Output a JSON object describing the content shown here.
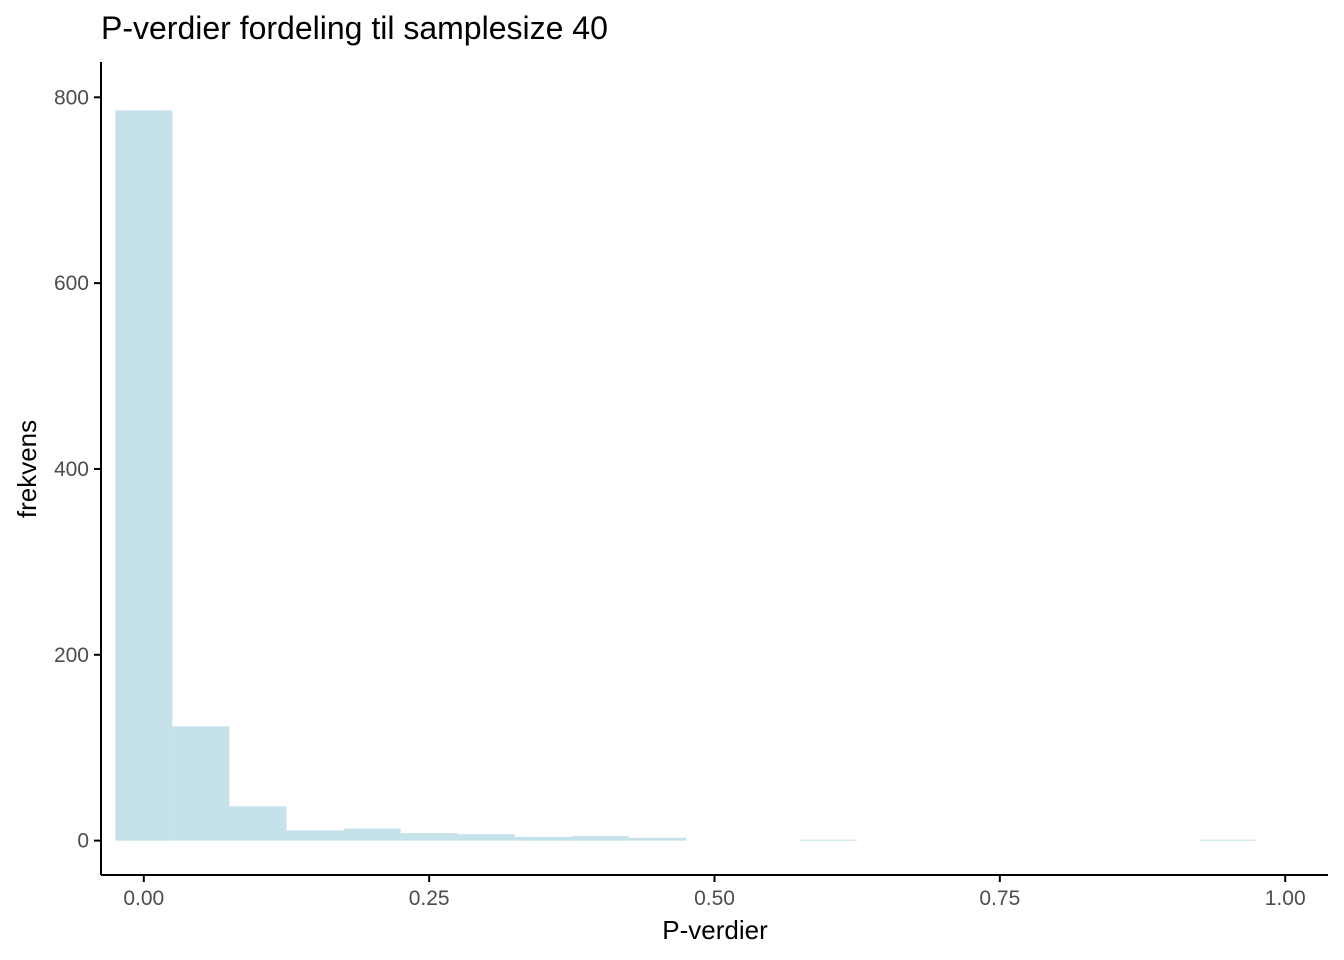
{
  "chart_data": {
    "type": "bar",
    "title": "P-verdier fordeling til samplesize 40",
    "xlabel": "P-verdier",
    "ylabel": "frekvens",
    "xlim": [
      -0.0375,
      1.0375
    ],
    "ylim": [
      -37,
      838
    ],
    "bin_width": 0.05,
    "x": [
      0.0,
      0.05,
      0.1,
      0.15,
      0.2,
      0.25,
      0.3,
      0.35,
      0.4,
      0.45,
      0.5,
      0.55,
      0.6,
      0.65,
      0.7,
      0.75,
      0.8,
      0.85,
      0.9,
      0.95
    ],
    "values": [
      786,
      123,
      37,
      11,
      13,
      8,
      7,
      4,
      5,
      3,
      0,
      0,
      1,
      0,
      0,
      0,
      0,
      0,
      0,
      1
    ],
    "x_ticks": [
      0.0,
      0.25,
      0.5,
      0.75,
      1.0
    ],
    "x_tick_labels": [
      "0.00",
      "0.25",
      "0.50",
      "0.75",
      "1.00"
    ],
    "y_ticks": [
      0,
      200,
      400,
      600,
      800
    ],
    "y_tick_labels": [
      "0",
      "200",
      "400",
      "600",
      "800"
    ],
    "grid": false,
    "legend": "none",
    "colors": {
      "bar_fill": "#c5e1ea",
      "axis_line": "#000000",
      "tick_label": "#4d4d4d"
    }
  }
}
